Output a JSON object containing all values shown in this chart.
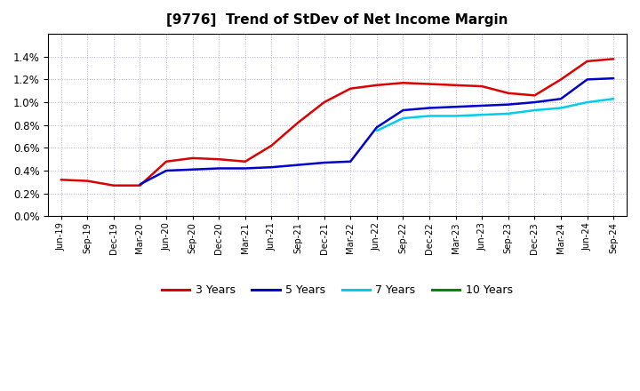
{
  "title": "[9776]  Trend of StDev of Net Income Margin",
  "title_fontsize": 11,
  "background_color": "#ffffff",
  "plot_bg_color": "#ffffff",
  "grid_color": "#6666aa",
  "ylim": [
    0.0,
    0.016
  ],
  "yticks": [
    0.0,
    0.002,
    0.004,
    0.006,
    0.008,
    0.01,
    0.012,
    0.014
  ],
  "series": {
    "3 Years": {
      "color": "#dd0000",
      "values": [
        0.0032,
        0.0031,
        0.0027,
        0.0027,
        0.0048,
        0.0051,
        0.005,
        0.0048,
        0.0062,
        0.0082,
        0.01,
        0.0112,
        0.0115,
        0.0117,
        0.0116,
        0.0115,
        0.0114,
        0.0108,
        0.0106,
        0.012,
        0.0136,
        0.0138
      ]
    },
    "5 Years": {
      "color": "#0000cc",
      "values": [
        null,
        null,
        null,
        0.0028,
        0.004,
        0.0041,
        0.0042,
        0.0042,
        0.0043,
        0.0045,
        0.0047,
        0.0048,
        0.0078,
        0.0093,
        0.0095,
        0.0096,
        0.0097,
        0.0098,
        0.01,
        0.0103,
        0.012,
        0.0121
      ]
    },
    "7 Years": {
      "color": "#00ccee",
      "values": [
        null,
        null,
        null,
        null,
        null,
        null,
        null,
        null,
        null,
        null,
        null,
        null,
        0.0075,
        0.0086,
        0.0088,
        0.0088,
        0.0089,
        0.009,
        0.0093,
        0.0095,
        0.01,
        0.0103
      ]
    },
    "10 Years": {
      "color": "#008800",
      "values": [
        null,
        null,
        null,
        null,
        null,
        null,
        null,
        null,
        null,
        null,
        null,
        null,
        null,
        null,
        null,
        null,
        null,
        null,
        null,
        null,
        null,
        null
      ]
    }
  },
  "xtick_labels": [
    "Jun-19",
    "Sep-19",
    "Dec-19",
    "Mar-20",
    "Jun-20",
    "Sep-20",
    "Dec-20",
    "Mar-21",
    "Jun-21",
    "Sep-21",
    "Dec-21",
    "Mar-22",
    "Jun-22",
    "Sep-22",
    "Dec-22",
    "Mar-23",
    "Jun-23",
    "Sep-23",
    "Dec-23",
    "Mar-24",
    "Jun-24",
    "Sep-24"
  ],
  "legend_labels": [
    "3 Years",
    "5 Years",
    "7 Years",
    "10 Years"
  ],
  "legend_colors": [
    "#dd0000",
    "#0000cc",
    "#00ccee",
    "#008800"
  ]
}
